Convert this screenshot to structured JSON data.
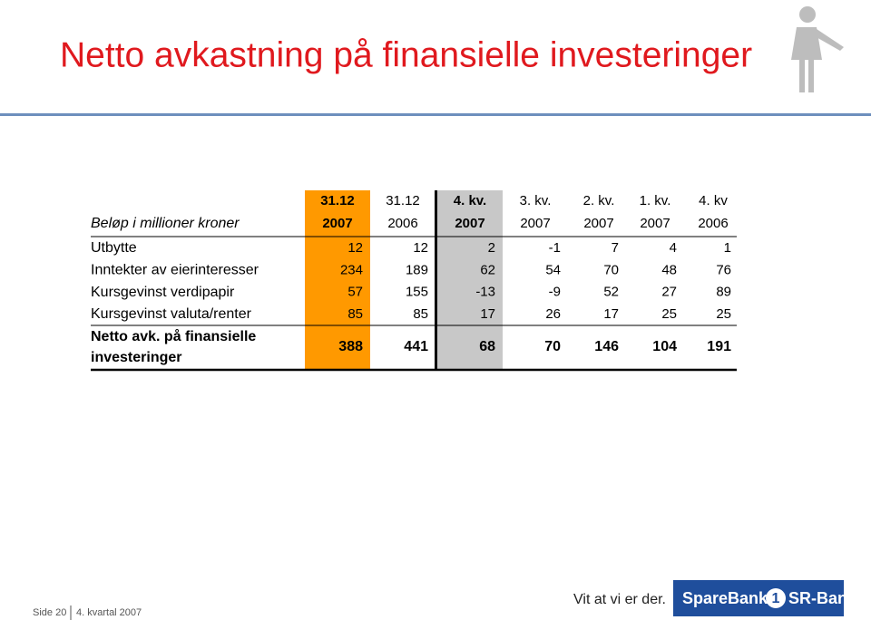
{
  "header": {
    "title": "Netto avkastning på finansielle investeringer"
  },
  "table": {
    "unit_label": "Beløp i millioner kroner",
    "columns": [
      [
        "31.12",
        "2007"
      ],
      [
        "31.12",
        "2006"
      ],
      [
        "4. kv.",
        "2007"
      ],
      [
        "3. kv.",
        "2007"
      ],
      [
        "2. kv.",
        "2007"
      ],
      [
        "1. kv.",
        "2007"
      ],
      [
        "4. kv",
        "2006"
      ]
    ],
    "rows": [
      {
        "label": "Utbytte",
        "values": [
          12,
          12,
          2,
          -1,
          7,
          4,
          1
        ]
      },
      {
        "label": "Inntekter av eierinteresser",
        "values": [
          234,
          189,
          62,
          54,
          70,
          48,
          76
        ]
      },
      {
        "label": "Kursgevinst verdipapir",
        "values": [
          57,
          155,
          -13,
          -9,
          52,
          27,
          89
        ]
      },
      {
        "label": "Kursgevinst valuta/renter",
        "values": [
          85,
          85,
          17,
          26,
          17,
          25,
          25
        ]
      }
    ],
    "total": {
      "label": [
        "Netto avk. på finansielle",
        "investeringer"
      ],
      "values": [
        388,
        441,
        68,
        70,
        146,
        104,
        191
      ]
    }
  },
  "footer": {
    "page": "Side 20",
    "period": "4. kvartal 2007",
    "slogan": "Vit at vi er der.",
    "logo": [
      "SpareBank",
      "1",
      "SR-Bank"
    ]
  }
}
